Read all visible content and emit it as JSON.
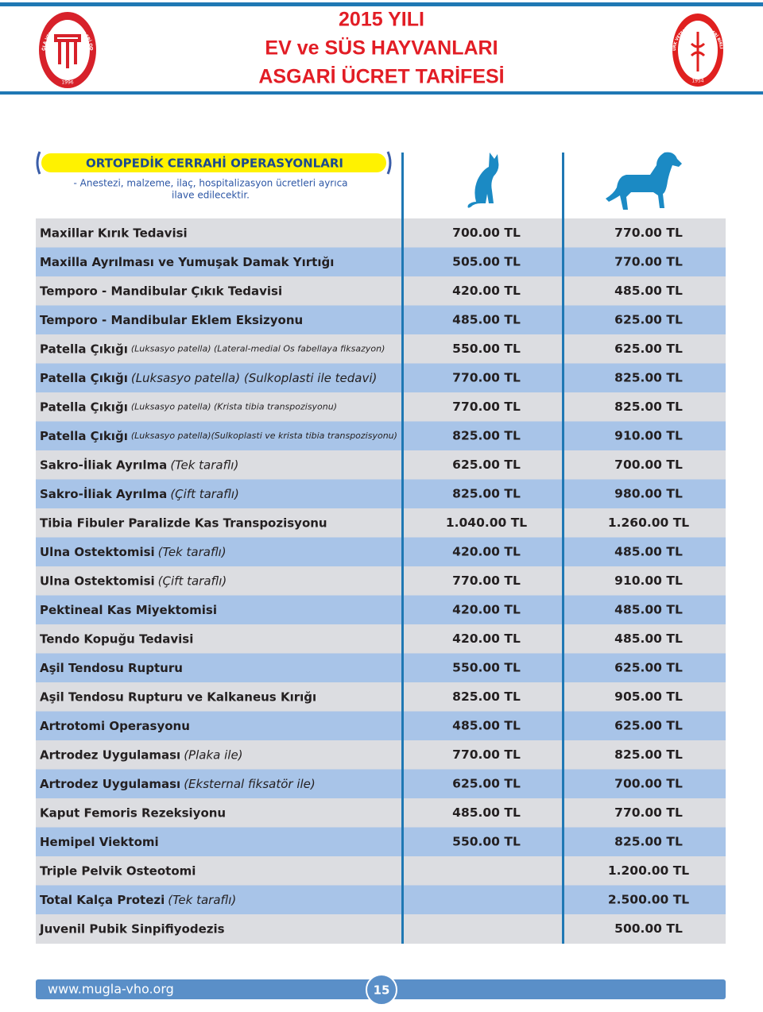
{
  "header": {
    "title_lines": [
      "2015 YILI",
      "EV ve SÜS HAYVANLARI",
      "ASGARİ ÜCRET TARİFESİ"
    ],
    "left_logo": {
      "text": "MUĞLA VETERİNER HEKİMLERİ ODASI",
      "year": "1996"
    },
    "right_logo": {
      "text": "TÜRK VETERİNER HEKİMLERİ BİRLİĞİ",
      "year": "1954"
    }
  },
  "section": {
    "title": "ORTOPEDİK CERRAHİ OPERASYONLARI",
    "note_lines": [
      "- Anestezi, malzeme, ilaç, hospitalizasyon ücretleri ayrıca",
      "ilave edilecektir."
    ]
  },
  "table": {
    "rows": [
      {
        "name": "Maxillar Kırık Tedavisi",
        "cat": "700.00 TL",
        "dog": "770.00 TL"
      },
      {
        "name": "Maxilla Ayrılması ve Yumuşak Damak Yırtığı",
        "cat": "505.00 TL",
        "dog": "770.00 TL"
      },
      {
        "name": "Temporo - Mandibular Çıkık Tedavisi",
        "cat": "420.00 TL",
        "dog": "485.00 TL"
      },
      {
        "name": "Temporo - Mandibular Eklem Eksizyonu",
        "cat": "485.00 TL",
        "dog": "625.00 TL"
      },
      {
        "name": "Patella Çıkığı",
        "detail": "(Luksasyo patella) (Lateral-medial Os fabellaya fiksazyon)",
        "cat": "550.00 TL",
        "dog": "625.00 TL"
      },
      {
        "name": "Patella Çıkığı",
        "detail": "(Luksasyo patella) (Sulkoplasti ile tedavi)",
        "cat": "770.00 TL",
        "dog": "825.00 TL"
      },
      {
        "name": "Patella Çıkığı",
        "detail": "(Luksasyo patella) (Krista tibia transpozisyonu)",
        "cat": "770.00 TL",
        "dog": "825.00 TL"
      },
      {
        "name": "Patella Çıkığı",
        "detail": "(Luksasyo patella)(Sulkoplasti ve krista tibia transpozisyonu)",
        "cat": "825.00 TL",
        "dog": "910.00 TL"
      },
      {
        "name": "Sakro-İliak Ayrılma",
        "detail": "(Tek taraflı)",
        "cat": "625.00 TL",
        "dog": "700.00 TL"
      },
      {
        "name": "Sakro-İliak Ayrılma",
        "detail": "(Çift taraflı)",
        "cat": "825.00 TL",
        "dog": "980.00 TL"
      },
      {
        "name": "Tibia Fibuler Paralizde Kas Transpozisyonu",
        "cat": "1.040.00 TL",
        "dog": "1.260.00 TL"
      },
      {
        "name": "Ulna Ostektomisi",
        "detail": "(Tek taraflı)",
        "cat": "420.00 TL",
        "dog": "485.00 TL"
      },
      {
        "name": "Ulna Ostektomisi",
        "detail": "(Çift taraflı)",
        "cat": "770.00 TL",
        "dog": "910.00 TL"
      },
      {
        "name": "Pektineal Kas Miyektomisi",
        "cat": "420.00 TL",
        "dog": "485.00 TL"
      },
      {
        "name": "Tendo Kopuğu Tedavisi",
        "cat": "420.00 TL",
        "dog": "485.00 TL"
      },
      {
        "name": "Aşil Tendosu Rupturu",
        "cat": "550.00 TL",
        "dog": "625.00 TL"
      },
      {
        "name": "Aşil Tendosu Rupturu ve Kalkaneus Kırığı",
        "cat": "825.00 TL",
        "dog": "905.00 TL"
      },
      {
        "name": "Artrotomi Operasyonu",
        "cat": "485.00 TL",
        "dog": "625.00 TL"
      },
      {
        "name": "Artrodez Uygulaması",
        "detail": "(Plaka ile)",
        "cat": "770.00 TL",
        "dog": "825.00 TL"
      },
      {
        "name": "Artrodez Uygulaması",
        "detail": "(Eksternal fiksatör ile)",
        "cat": "625.00 TL",
        "dog": "700.00 TL"
      },
      {
        "name": "Kaput Femoris Rezeksiyonu",
        "cat": "485.00 TL",
        "dog": "770.00 TL"
      },
      {
        "name": "Hemipel Viektomi",
        "cat": "550.00 TL",
        "dog": "825.00 TL"
      },
      {
        "name": "Triple Pelvik Osteotomi",
        "dog": "1.200.00 TL"
      },
      {
        "name": "Total Kalça Protezi",
        "detail": "(Tek taraflı)",
        "dog": "2.500.00 TL"
      },
      {
        "name": "Juvenil Pubik Sinpifiyodezis",
        "dog": "500.00 TL"
      }
    ]
  },
  "footer": {
    "url": "www.mugla-vho.org",
    "page": "15"
  }
}
